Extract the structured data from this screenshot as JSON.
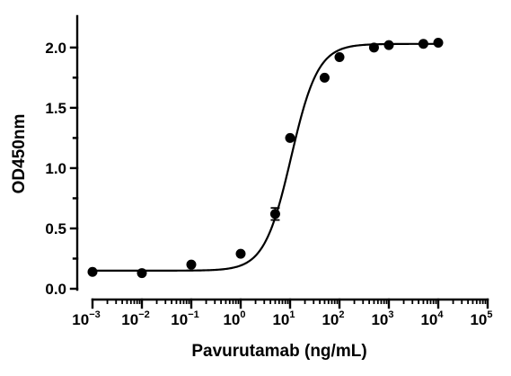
{
  "chart_data": {
    "type": "scatter",
    "xlabel": "Pavurutamab (ng/mL)",
    "ylabel": "OD450nm",
    "xscale": "log",
    "xlim": [
      0.001,
      100000
    ],
    "ylim": [
      0,
      2.2
    ],
    "x_ticks": [
      {
        "base": "10",
        "exp": "-3"
      },
      {
        "base": "10",
        "exp": "-2"
      },
      {
        "base": "10",
        "exp": "-1"
      },
      {
        "base": "10",
        "exp": "0"
      },
      {
        "base": "10",
        "exp": "1"
      },
      {
        "base": "10",
        "exp": "2"
      },
      {
        "base": "10",
        "exp": "3"
      },
      {
        "base": "10",
        "exp": "4"
      },
      {
        "base": "10",
        "exp": "5"
      }
    ],
    "y_ticks": [
      "0.0",
      "0.5",
      "1.0",
      "1.5",
      "2.0"
    ],
    "grid": false,
    "series": [
      {
        "x": [
          0.001,
          0.01,
          0.1,
          1,
          5,
          10,
          50,
          100,
          500,
          1000,
          5000,
          10000
        ],
        "y": [
          0.14,
          0.13,
          0.2,
          0.29,
          0.62,
          1.25,
          1.75,
          1.92,
          2.0,
          2.02,
          2.03,
          2.04
        ],
        "error": [
          0,
          0,
          0,
          0,
          0.05,
          0,
          0,
          0,
          0,
          0,
          0,
          0
        ],
        "color": "#000000"
      }
    ],
    "fit": {
      "model": "4PL",
      "bottom": 0.15,
      "top": 2.03,
      "ec50": 10.5,
      "hill": 1.6,
      "color": "#000000"
    }
  }
}
